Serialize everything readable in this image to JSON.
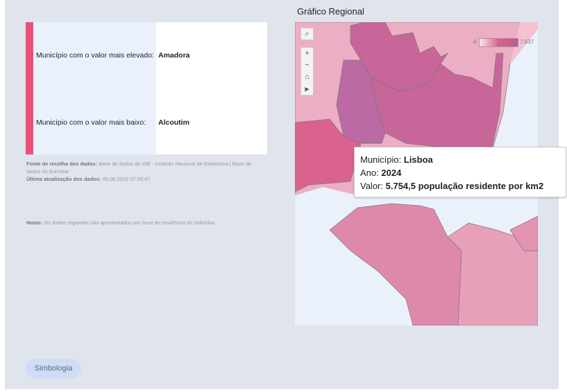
{
  "card": {
    "highest_label": "Município com o valor mais elevado:",
    "highest_value": "Amadora",
    "lowest_label": "Município com o valor mais baixo:",
    "lowest_value": "Alcoutim"
  },
  "meta": {
    "source_label": "Fonte de recolha dos dados:",
    "source_value": "Base de dados do INE - Instituto Nacional de Estatística | Base de dados do Eurostat",
    "updated_label": "Última atualização dos dados:",
    "updated_value": "05.08.2025 07:39:47",
    "notes_label": "Notas:",
    "notes_value": "Os dados regionais são apresentados por local de residência do indivíduo."
  },
  "map": {
    "title": "Gráfico Regional",
    "legend_min": "4",
    "legend_max": "7.637",
    "colors": {
      "low": "#fbe3ea",
      "mid": "#d9628e",
      "high": "#bb5a94",
      "water": "#eaf1fb"
    }
  },
  "tooltip": {
    "m_label": "Município:",
    "m_value": "Lisboa",
    "a_label": "Ano:",
    "a_value": "2024",
    "v_label": "Valor:",
    "v_value": "5.754,5 população residente por km2"
  },
  "button": {
    "label": "Simbologia"
  }
}
